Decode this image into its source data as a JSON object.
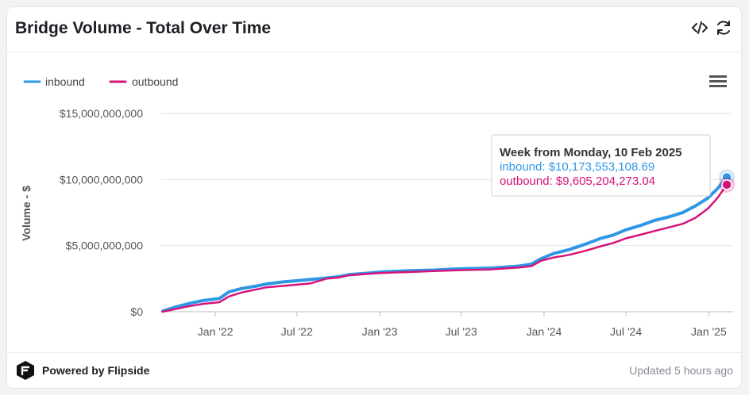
{
  "header": {
    "title": "Bridge Volume - Total Over Time",
    "embed_icon": "code-embed-icon",
    "refresh_icon": "refresh-icon"
  },
  "menu_icon": "hamburger-menu-icon",
  "footer": {
    "brand": "Powered by Flipside",
    "brand_icon": "flipside-logo-icon",
    "updated": "Updated 5 hours ago"
  },
  "colors": {
    "inbound": "#2f97e6",
    "outbound": "#d6137a"
  },
  "tooltip": {
    "title": "Week from Monday, 10 Feb 2025",
    "inbound": "inbound: $10,173,553,108.69",
    "outbound": "outbound: $9,605,204,273.04"
  },
  "chart_data": {
    "type": "line",
    "ylabel": "Volume - $",
    "ylim": [
      0,
      15000000000
    ],
    "ytick_labels": [
      "$0",
      "$5,000,000,000",
      "$10,000,000,000",
      "$15,000,000,000"
    ],
    "xtick_labels": [
      "Jan '22",
      "Jul '22",
      "Jan '23",
      "Jul '23",
      "Jan '24",
      "Jul '24",
      "Jan '25"
    ],
    "grid": true,
    "legend_position": "top-left",
    "x": [
      "2021-09-06",
      "2021-10-04",
      "2021-11-01",
      "2021-12-06",
      "2022-01-10",
      "2022-01-31",
      "2022-02-28",
      "2022-04-04",
      "2022-04-25",
      "2022-05-30",
      "2022-07-04",
      "2022-08-01",
      "2022-09-05",
      "2022-10-03",
      "2022-10-24",
      "2022-11-28",
      "2023-01-02",
      "2023-03-06",
      "2023-05-01",
      "2023-07-03",
      "2023-09-04",
      "2023-11-06",
      "2023-12-04",
      "2023-12-25",
      "2024-01-22",
      "2024-02-26",
      "2024-04-01",
      "2024-05-06",
      "2024-06-03",
      "2024-07-01",
      "2024-08-05",
      "2024-09-02",
      "2024-10-07",
      "2024-11-04",
      "2024-12-02",
      "2024-12-30",
      "2025-01-20",
      "2025-02-10"
    ],
    "series": [
      {
        "name": "inbound",
        "values": [
          50000000.0,
          350000000.0,
          600000000.0,
          850000000.0,
          1000000000.0,
          1500000000.0,
          1750000000.0,
          1950000000.0,
          2100000000.0,
          2250000000.0,
          2350000000.0,
          2450000000.0,
          2550000000.0,
          2650000000.0,
          2800000000.0,
          2900000000.0,
          3000000000.0,
          3100000000.0,
          3150000000.0,
          3250000000.0,
          3300000000.0,
          3450000000.0,
          3600000000.0,
          4000000000.0,
          4400000000.0,
          4700000000.0,
          5100000000.0,
          5550000000.0,
          5800000000.0,
          6200000000.0,
          6550000000.0,
          6900000000.0,
          7200000000.0,
          7500000000.0,
          8000000000.0,
          8600000000.0,
          9300000000.0,
          10170000000.0
        ]
      },
      {
        "name": "outbound",
        "values": [
          0.0,
          200000000.0,
          400000000.0,
          600000000.0,
          720000000.0,
          1150000000.0,
          1450000000.0,
          1700000000.0,
          1850000000.0,
          1950000000.0,
          2050000000.0,
          2150000000.0,
          2500000000.0,
          2600000000.0,
          2750000000.0,
          2850000000.0,
          2930000000.0,
          3000000000.0,
          3080000000.0,
          3150000000.0,
          3200000000.0,
          3350000000.0,
          3450000000.0,
          3850000000.0,
          4100000000.0,
          4300000000.0,
          4600000000.0,
          4950000000.0,
          5200000000.0,
          5550000000.0,
          5850000000.0,
          6100000000.0,
          6400000000.0,
          6650000000.0,
          7100000000.0,
          7800000000.0,
          8600000000.0,
          9610000000.0
        ]
      }
    ]
  }
}
